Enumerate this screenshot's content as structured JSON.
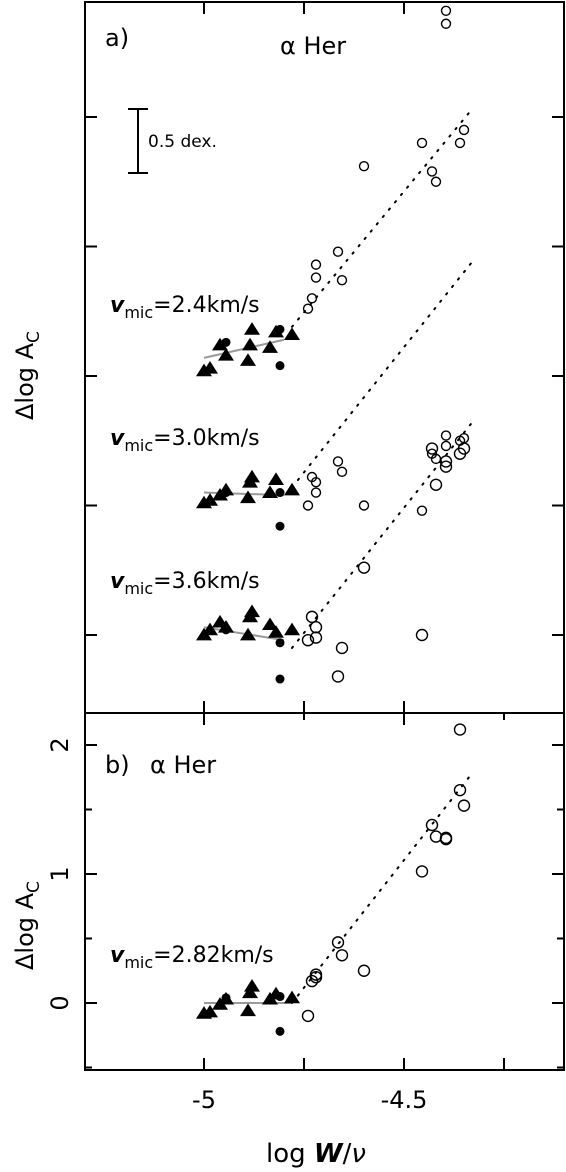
{
  "chart_data": [
    {
      "type": "scatter",
      "panel_label": "a)",
      "title": "α Her",
      "ylabel": "Δlog A",
      "ylabel_sub": "C",
      "scale_bar_label": "0.5 dex.",
      "xlim": [
        -5.38,
        -4.45
      ],
      "offset_ticks": [
        0,
        0.5,
        1.0,
        1.5,
        2.0,
        2.5
      ],
      "series": [
        {
          "label": "v",
          "label_sub": "mic",
          "label_value": "=2.4km/s",
          "offset": 1.0,
          "triangles": [
            [
              -5.0,
              0.02
            ],
            [
              -4.985,
              0.03
            ],
            [
              -4.96,
              0.12
            ],
            [
              -4.945,
              0.08
            ],
            [
              -4.89,
              0.06
            ],
            [
              -4.885,
              0.12
            ],
            [
              -4.88,
              0.18
            ],
            [
              -4.835,
              0.11
            ],
            [
              -4.82,
              0.17
            ],
            [
              -4.78,
              0.16
            ]
          ],
          "dots": [
            [
              -4.945,
              0.13
            ],
            [
              -4.81,
              0.18
            ],
            [
              -4.81,
              0.04
            ]
          ],
          "circles": [
            [
              -4.74,
              0.26
            ],
            [
              -4.73,
              0.3
            ],
            [
              -4.72,
              0.38
            ],
            [
              -4.72,
              0.43
            ],
            [
              -4.665,
              0.48
            ],
            [
              -4.655,
              0.37
            ],
            [
              -4.6,
              0.81
            ],
            [
              -4.455,
              0.9
            ],
            [
              -4.43,
              0.79
            ],
            [
              -4.42,
              0.75
            ],
            [
              -4.395,
              1.41
            ],
            [
              -4.395,
              1.36
            ],
            [
              -4.36,
              0.9
            ],
            [
              -4.35,
              0.95
            ]
          ],
          "fit": [
            [
              -5.0,
              0.07
            ],
            [
              -4.8,
              0.14
            ]
          ],
          "trend": [
            [
              -4.78,
              0.19
            ],
            [
              -4.33,
              1.03
            ]
          ]
        },
        {
          "label": "v",
          "label_sub": "mic",
          "label_value": "=3.0km/s",
          "offset": 0.5,
          "triangles": [
            [
              -5.0,
              0.01
            ],
            [
              -4.985,
              0.02
            ],
            [
              -4.96,
              0.04
            ],
            [
              -4.945,
              0.06
            ],
            [
              -4.89,
              0.03
            ],
            [
              -4.885,
              0.09
            ],
            [
              -4.88,
              0.11
            ],
            [
              -4.835,
              0.05
            ],
            [
              -4.82,
              0.1
            ],
            [
              -4.78,
              0.06
            ]
          ],
          "dots": [
            [
              -4.945,
              0.05
            ],
            [
              -4.81,
              0.05
            ],
            [
              -4.81,
              -0.08
            ]
          ],
          "circles": [
            [
              -4.74,
              0.0
            ],
            [
              -4.73,
              0.11
            ],
            [
              -4.72,
              0.09
            ],
            [
              -4.72,
              0.05
            ],
            [
              -4.665,
              0.17
            ],
            [
              -4.655,
              0.13
            ],
            [
              -4.6,
              0.0
            ],
            [
              -4.455,
              -0.02
            ],
            [
              -4.43,
              0.2
            ],
            [
              -4.42,
              0.18
            ],
            [
              -4.395,
              0.23
            ],
            [
              -4.395,
              0.27
            ],
            [
              -4.36,
              0.25
            ],
            [
              -4.35,
              0.26
            ]
          ],
          "fit": [
            [
              -5.0,
              0.05
            ],
            [
              -4.8,
              0.04
            ]
          ],
          "trend": [
            [
              -4.78,
              0.07
            ],
            [
              -4.33,
              0.94
            ]
          ]
        },
        {
          "label": "v",
          "label_sub": "mic",
          "label_value": "=3.6km/s",
          "offset": 0.0,
          "triangles": [
            [
              -5.0,
              0.0
            ],
            [
              -4.985,
              0.02
            ],
            [
              -4.96,
              0.05
            ],
            [
              -4.945,
              0.03
            ],
            [
              -4.89,
              0.0
            ],
            [
              -4.885,
              0.07
            ],
            [
              -4.88,
              0.09
            ],
            [
              -4.835,
              0.04
            ],
            [
              -4.82,
              0.01
            ],
            [
              -4.78,
              0.02
            ]
          ],
          "dots": [
            [
              -4.945,
              0.02
            ],
            [
              -4.81,
              -0.03
            ],
            [
              -4.81,
              -0.17
            ]
          ],
          "circles": [
            [
              -4.74,
              -0.02
            ],
            [
              -4.73,
              0.07
            ],
            [
              -4.72,
              0.03
            ],
            [
              -4.72,
              -0.01
            ],
            [
              -4.665,
              -0.16
            ],
            [
              -4.655,
              -0.05
            ],
            [
              -4.6,
              0.26
            ],
            [
              -4.455,
              0.0
            ],
            [
              -4.43,
              0.72
            ],
            [
              -4.42,
              0.58
            ],
            [
              -4.395,
              0.65
            ],
            [
              -4.395,
              0.67
            ],
            [
              -4.36,
              0.7
            ],
            [
              -4.35,
              0.72
            ]
          ],
          "fit": [
            [
              -5.0,
              0.03
            ],
            [
              -4.8,
              -0.02
            ]
          ],
          "trend": [
            [
              -4.78,
              -0.05
            ],
            [
              -4.33,
              0.82
            ]
          ]
        }
      ]
    },
    {
      "type": "scatter",
      "panel_label": "b)",
      "title": "α Her",
      "ylabel": "Δlog A",
      "ylabel_sub": "C",
      "xlabel": "log W/ν",
      "xlim": [
        -5.38,
        -4.45
      ],
      "ylim": [
        -0.52,
        2.2
      ],
      "x_ticks": [
        "-5",
        "-4.5"
      ],
      "y_ticks": [
        "0",
        "1",
        "2"
      ],
      "series": [
        {
          "label": "v",
          "label_sub": "mic",
          "label_value": "=2.82km/s",
          "triangles": [
            [
              -5.0,
              -0.08
            ],
            [
              -4.985,
              -0.07
            ],
            [
              -4.96,
              -0.01
            ],
            [
              -4.945,
              0.03
            ],
            [
              -4.89,
              -0.06
            ],
            [
              -4.885,
              0.08
            ],
            [
              -4.88,
              0.13
            ],
            [
              -4.835,
              0.03
            ],
            [
              -4.82,
              0.07
            ],
            [
              -4.78,
              0.04
            ]
          ],
          "dots": [
            [
              -4.945,
              0.04
            ],
            [
              -4.81,
              0.05
            ],
            [
              -4.81,
              -0.22
            ]
          ],
          "circles": [
            [
              -4.74,
              -0.1
            ],
            [
              -4.73,
              0.17
            ],
            [
              -4.72,
              0.2
            ],
            [
              -4.72,
              0.22
            ],
            [
              -4.665,
              0.47
            ],
            [
              -4.655,
              0.37
            ],
            [
              -4.6,
              0.25
            ],
            [
              -4.455,
              1.02
            ],
            [
              -4.43,
              1.38
            ],
            [
              -4.42,
              1.29
            ],
            [
              -4.395,
              1.27
            ],
            [
              -4.395,
              1.28
            ],
            [
              -4.36,
              1.65
            ],
            [
              -4.35,
              1.53
            ],
            [
              -4.36,
              2.12
            ]
          ],
          "fit": [
            [
              -5.0,
              0.0
            ],
            [
              -4.78,
              0.0
            ]
          ],
          "trend": [
            [
              -4.78,
              0.0
            ],
            [
              -4.33,
              1.78
            ]
          ]
        }
      ]
    }
  ]
}
